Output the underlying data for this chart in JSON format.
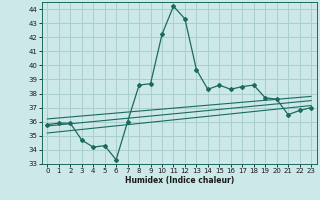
{
  "xlabel": "Humidex (Indice chaleur)",
  "background_color": "#cce8e8",
  "grid_color": "#aacfcf",
  "line_color": "#1a6b5e",
  "ylim": [
    33,
    44.5
  ],
  "xlim": [
    -0.5,
    23.5
  ],
  "yticks": [
    33,
    34,
    35,
    36,
    37,
    38,
    39,
    40,
    41,
    42,
    43,
    44
  ],
  "xticks": [
    0,
    1,
    2,
    3,
    4,
    5,
    6,
    7,
    8,
    9,
    10,
    11,
    12,
    13,
    14,
    15,
    16,
    17,
    18,
    19,
    20,
    21,
    22,
    23
  ],
  "series1_x": [
    0,
    1,
    2,
    3,
    4,
    5,
    6,
    7,
    8,
    9,
    10,
    11,
    12,
    13,
    14,
    15,
    16,
    17,
    18,
    19,
    20,
    21,
    22,
    23
  ],
  "series1_y": [
    35.8,
    35.9,
    35.9,
    34.7,
    34.2,
    34.3,
    33.3,
    36.0,
    38.6,
    38.7,
    42.2,
    44.2,
    43.3,
    39.7,
    38.3,
    38.6,
    38.3,
    38.5,
    38.6,
    37.7,
    37.6,
    36.5,
    36.8,
    37.0
  ],
  "series2_x": [
    0,
    23
  ],
  "series2_y": [
    36.2,
    37.8
  ],
  "series3_x": [
    0,
    23
  ],
  "series3_y": [
    35.7,
    37.5
  ],
  "series4_x": [
    0,
    23
  ],
  "series4_y": [
    35.2,
    37.15
  ]
}
